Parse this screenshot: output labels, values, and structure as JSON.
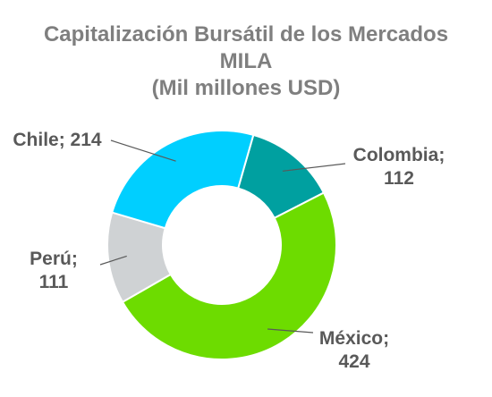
{
  "chart_data": {
    "type": "pie",
    "variant": "donut",
    "title_lines": [
      "Capitalización Bursátil de los Mercados",
      "MILA",
      "(Mil millones USD)"
    ],
    "slices": [
      {
        "name": "Colombia",
        "value": 112,
        "color": "#00a0a0",
        "label_lines": [
          "Colombia;",
          "112"
        ]
      },
      {
        "name": "México",
        "value": 424,
        "color": "#6ddc00",
        "label_lines": [
          "México;",
          "424"
        ]
      },
      {
        "name": "Perú",
        "value": 111,
        "color": "#cfd2d4",
        "label_lines": [
          "Perú;",
          "111"
        ]
      },
      {
        "name": "Chile",
        "value": 214,
        "color": "#00cfff",
        "label_lines": [
          "Chile; 214"
        ]
      }
    ],
    "legend": "none"
  }
}
